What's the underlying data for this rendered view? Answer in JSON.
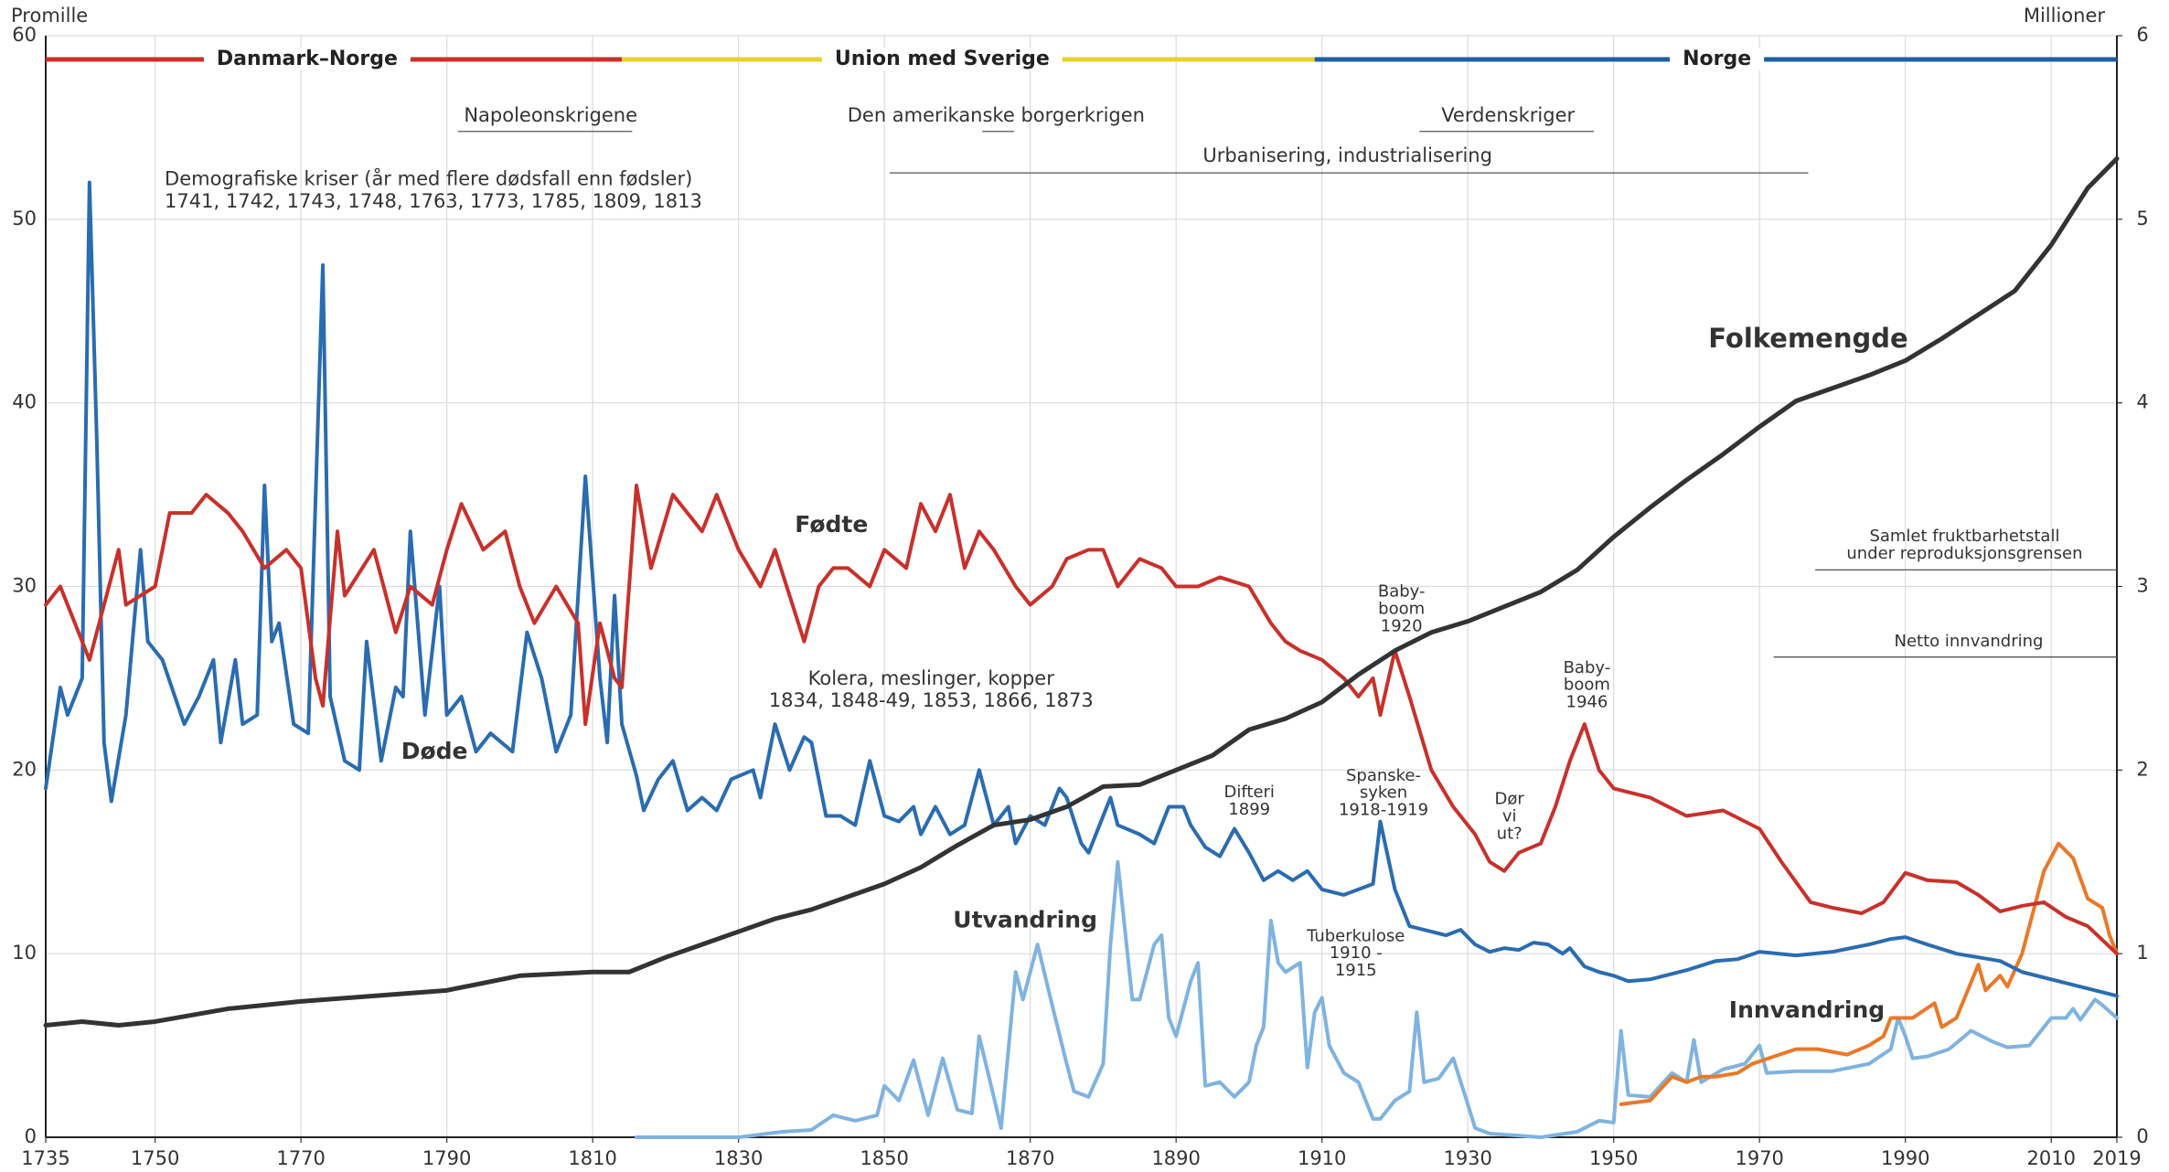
{
  "chart_data": {
    "type": "line",
    "y_label": "Promille",
    "y2_label": "Millioner",
    "xlim": [
      1735,
      2019
    ],
    "xticks": [
      1735,
      1750,
      1770,
      1790,
      1810,
      1830,
      1850,
      1870,
      1890,
      1910,
      1930,
      1950,
      1970,
      1990,
      2010,
      2019
    ],
    "ylim": [
      0,
      60
    ],
    "yticks": [
      0,
      10,
      20,
      30,
      40,
      50,
      60
    ],
    "y2lim": [
      0,
      6
    ],
    "y2ticks": [
      0,
      1,
      2,
      3,
      4,
      5,
      6
    ],
    "grid": true,
    "periods": [
      {
        "label": "Danmark–Norge",
        "color": "#c8312b",
        "start": 1735,
        "end": 1814
      },
      {
        "label": "Union med Sverige",
        "color": "#e8d22a",
        "start": 1814,
        "end": 1909
      },
      {
        "label": "Norge",
        "color": "#1f5fa0",
        "start": 1909,
        "end": 2019
      }
    ],
    "annotations": [
      {
        "lines": [
          "Napoleonskrigene"
        ]
      },
      {
        "lines": [
          "Den amerikanske borgerkrigen"
        ]
      },
      {
        "lines": [
          "Verdenskriger"
        ]
      },
      {
        "lines": [
          "Urbanisering, industrialisering"
        ]
      },
      {
        "lines": [
          "Demografiske kriser (år med flere dødsfall enn fødsler)",
          "1741, 1742, 1743, 1748, 1763, 1773, 1785, 1809, 1813"
        ]
      },
      {
        "lines": [
          "Kolera, meslinger, kopper",
          "1834, 1848-49, 1853, 1866, 1873"
        ]
      },
      {
        "lines": [
          "Baby-",
          "boom",
          "1920"
        ]
      },
      {
        "lines": [
          "Difteri",
          "1899"
        ]
      },
      {
        "lines": [
          "Spanske-",
          "syken",
          "1918-1919"
        ]
      },
      {
        "lines": [
          "Dør",
          "vi",
          "ut?"
        ]
      },
      {
        "lines": [
          "Baby-",
          "boom",
          "1946"
        ]
      },
      {
        "lines": [
          "Tuberkulose",
          "1910 -",
          "1915"
        ]
      },
      {
        "lines": [
          "Samlet fruktbarhetstall",
          "under reproduksjonsgrensen"
        ]
      },
      {
        "lines": [
          "Netto innvandring"
        ]
      }
    ],
    "series": [
      {
        "name": "Fødte",
        "color": "#c8312b",
        "x": [
          1735,
          1737,
          1740,
          1741,
          1745,
          1746,
          1750,
          1752,
          1755,
          1757,
          1760,
          1762,
          1765,
          1768,
          1770,
          1772,
          1773,
          1775,
          1776,
          1780,
          1783,
          1785,
          1788,
          1790,
          1792,
          1795,
          1798,
          1800,
          1802,
          1805,
          1808,
          1809,
          1811,
          1813,
          1814,
          1815,
          1816,
          1818,
          1821,
          1825,
          1827,
          1830,
          1833,
          1835,
          1837,
          1839,
          1841,
          1843,
          1845,
          1848,
          1850,
          1853,
          1855,
          1857,
          1859,
          1861,
          1863,
          1865,
          1868,
          1870,
          1873,
          1875,
          1878,
          1880,
          1882,
          1885,
          1888,
          1890,
          1893,
          1896,
          1900,
          1903,
          1905,
          1907,
          1910,
          1913,
          1915,
          1917,
          1918,
          1920,
          1922,
          1925,
          1928,
          1931,
          1933,
          1935,
          1937,
          1940,
          1942,
          1944,
          1946,
          1948,
          1950,
          1955,
          1960,
          1965,
          1970,
          1973,
          1977,
          1980,
          1984,
          1987,
          1990,
          1993,
          1997,
          2000,
          2003,
          2006,
          2009,
          2012,
          2015,
          2019
        ],
        "values": [
          29,
          30,
          27,
          26,
          32,
          29,
          30,
          34,
          34,
          35,
          34,
          33,
          31,
          32,
          31,
          25,
          23.5,
          33,
          29.5,
          32,
          27.5,
          30,
          29,
          32,
          34.5,
          32,
          33,
          30,
          28,
          30,
          28,
          22.5,
          28,
          25,
          24.5,
          30,
          35.5,
          31,
          35,
          33,
          35,
          32,
          30,
          32,
          29.5,
          27,
          30,
          31,
          31,
          30,
          32,
          31,
          34.5,
          33,
          35,
          31,
          33,
          32,
          30,
          29,
          30,
          31.5,
          32,
          32,
          30,
          31.5,
          31,
          30,
          30,
          30.5,
          30,
          28,
          27,
          26.5,
          26,
          25,
          24,
          25,
          23,
          26.5,
          24,
          20,
          18,
          16.5,
          15,
          14.5,
          15.5,
          16,
          18,
          20.5,
          22.5,
          20,
          19,
          18.5,
          17.5,
          17.8,
          16.8,
          15,
          12.8,
          12.5,
          12.2,
          12.8,
          14.4,
          14,
          13.9,
          13.2,
          12.3,
          12.6,
          12.8,
          12,
          11.5,
          10
        ]
      },
      {
        "name": "Døde",
        "color": "#2a6cb0",
        "x": [
          1735,
          1737,
          1738,
          1740,
          1741,
          1742,
          1743,
          1744,
          1746,
          1748,
          1749,
          1751,
          1754,
          1756,
          1758,
          1759,
          1761,
          1762,
          1764,
          1765,
          1766,
          1767,
          1769,
          1771,
          1773,
          1774,
          1776,
          1778,
          1779,
          1781,
          1783,
          1784,
          1785,
          1787,
          1789,
          1790,
          1792,
          1794,
          1796,
          1799,
          1801,
          1803,
          1805,
          1807,
          1809,
          1811,
          1812,
          1813,
          1814,
          1816,
          1817,
          1819,
          1821,
          1823,
          1825,
          1827,
          1829,
          1832,
          1833,
          1835,
          1837,
          1839,
          1840,
          1842,
          1844,
          1846,
          1848,
          1850,
          1852,
          1854,
          1855,
          1857,
          1859,
          1861,
          1863,
          1865,
          1867,
          1868,
          1870,
          1872,
          1874,
          1875,
          1877,
          1878,
          1881,
          1882,
          1885,
          1887,
          1889,
          1891,
          1892,
          1894,
          1896,
          1898,
          1900,
          1902,
          1904,
          1906,
          1908,
          1910,
          1913,
          1915,
          1917,
          1918,
          1920,
          1922,
          1925,
          1927,
          1929,
          1931,
          1933,
          1935,
          1937,
          1939,
          1941,
          1943,
          1944,
          1946,
          1948,
          1950,
          1952,
          1955,
          1960,
          1964,
          1967,
          1970,
          1975,
          1980,
          1985,
          1988,
          1990,
          1993,
          1997,
          2000,
          2003,
          2006,
          2010,
          2015,
          2019
        ],
        "values": [
          19,
          24.5,
          23,
          25,
          52,
          38,
          21.5,
          18.3,
          23,
          32,
          27,
          26,
          22.5,
          24,
          26,
          21.5,
          26,
          22.5,
          23,
          35.5,
          27,
          28,
          22.5,
          22,
          47.5,
          24,
          20.5,
          20,
          27,
          20.5,
          24.5,
          24,
          33,
          23,
          30,
          23,
          24,
          21,
          22,
          21,
          27.5,
          25,
          21,
          23,
          36,
          25,
          21.5,
          29.5,
          22.5,
          19.7,
          17.8,
          19.5,
          20.5,
          17.8,
          18.5,
          17.8,
          19.5,
          20,
          18.5,
          22.5,
          20,
          21.8,
          21.5,
          17.5,
          17.5,
          17,
          20.5,
          17.5,
          17.2,
          18,
          16.5,
          18,
          16.5,
          17,
          20,
          17,
          18,
          16,
          17.5,
          17,
          19,
          18.5,
          16,
          15.5,
          18.5,
          17,
          16.5,
          16,
          18,
          18,
          17,
          15.8,
          15.3,
          16.8,
          15.5,
          14,
          14.5,
          14,
          14.5,
          13.5,
          13.2,
          13.5,
          13.8,
          17.2,
          13.5,
          11.5,
          11.2,
          11,
          11.3,
          10.5,
          10.1,
          10.3,
          10.2,
          10.6,
          10.5,
          10,
          10.3,
          9.3,
          9,
          8.8,
          8.5,
          8.6,
          9.1,
          9.6,
          9.7,
          10.1,
          9.9,
          10.1,
          10.5,
          10.8,
          10.9,
          10.5,
          10,
          9.8,
          9.6,
          9,
          8.6,
          8.1,
          7.7
        ]
      },
      {
        "name": "Utvandring",
        "color": "#7fb3e0",
        "x": [
          1816,
          1830,
          1836,
          1840,
          1843,
          1846,
          1849,
          1850,
          1852,
          1854,
          1856,
          1858,
          1860,
          1862,
          1863,
          1865,
          1866,
          1868,
          1869,
          1871,
          1873,
          1875,
          1876,
          1878,
          1880,
          1881,
          1882,
          1884,
          1885,
          1887,
          1888,
          1889,
          1890,
          1892,
          1893,
          1894,
          1896,
          1898,
          1900,
          1901,
          1902,
          1903,
          1904,
          1905,
          1907,
          1908,
          1909,
          1910,
          1911,
          1913,
          1915,
          1916,
          1917,
          1918,
          1919,
          1920,
          1922,
          1923,
          1924,
          1926,
          1928,
          1930,
          1931,
          1933,
          1940,
          1945,
          1948,
          1950,
          1951,
          1952,
          1955,
          1958,
          1960,
          1961,
          1962,
          1965,
          1968,
          1970,
          1971,
          1975,
          1980,
          1985,
          1988,
          1989,
          1990,
          1991,
          1993,
          1996,
          1999,
          2002,
          2004,
          2007,
          2010,
          2012,
          2013,
          2014,
          2016,
          2017,
          2019
        ],
        "values": [
          0,
          0,
          0.3,
          0.4,
          1.2,
          0.9,
          1.2,
          2.8,
          2,
          4.2,
          1.2,
          4.3,
          1.5,
          1.3,
          5.5,
          2.2,
          0.5,
          9,
          7.5,
          10.5,
          7.2,
          4,
          2.5,
          2.2,
          4,
          10.5,
          15,
          7.5,
          7.5,
          10.5,
          11,
          6.5,
          5.5,
          8.5,
          9.5,
          2.8,
          3,
          2.2,
          3,
          5,
          6,
          11.8,
          9.5,
          9,
          9.5,
          3.8,
          6.8,
          7.6,
          5,
          3.5,
          3,
          2,
          1,
          1,
          1.5,
          2,
          2.5,
          6.8,
          3,
          3.2,
          4.3,
          1.8,
          0.5,
          0.2,
          0,
          0.3,
          0.9,
          0.8,
          5.8,
          2.3,
          2.2,
          3.5,
          3,
          5.3,
          3,
          3.7,
          4,
          5,
          3.5,
          3.6,
          3.6,
          4,
          4.8,
          6.5,
          5.5,
          4.3,
          4.4,
          4.8,
          5.8,
          5.2,
          4.9,
          5,
          6.5,
          6.5,
          7,
          6.4,
          7.5,
          7.2,
          6.5
        ]
      },
      {
        "name": "Innvandring",
        "color": "#e8792a",
        "x": [
          1951,
          1955,
          1958,
          1960,
          1962,
          1964,
          1967,
          1969,
          1972,
          1975,
          1978,
          1982,
          1985,
          1987,
          1988,
          1990,
          1991,
          1994,
          1995,
          1997,
          2000,
          2001,
          2003,
          2004,
          2006,
          2008,
          2009,
          2011,
          2013,
          2015,
          2017,
          2018,
          2019
        ],
        "values": [
          1.8,
          2,
          3.3,
          3,
          3.3,
          3.3,
          3.5,
          4,
          4.4,
          4.8,
          4.8,
          4.5,
          5,
          5.5,
          6.5,
          6.5,
          6.5,
          7.3,
          6,
          6.5,
          9.4,
          8,
          8.8,
          8.2,
          10,
          13,
          14.5,
          16,
          15.2,
          13,
          12.5,
          11,
          10
        ]
      },
      {
        "name": "Folkemengde",
        "color": "#333333",
        "axis": "y2",
        "x": [
          1735,
          1740,
          1745,
          1750,
          1760,
          1770,
          1780,
          1790,
          1800,
          1810,
          1815,
          1820,
          1825,
          1830,
          1835,
          1840,
          1845,
          1850,
          1855,
          1860,
          1865,
          1870,
          1875,
          1880,
          1885,
          1890,
          1895,
          1900,
          1905,
          1910,
          1915,
          1920,
          1925,
          1930,
          1935,
          1940,
          1945,
          1950,
          1955,
          1960,
          1965,
          1970,
          1975,
          1980,
          1985,
          1990,
          1995,
          2000,
          2005,
          2010,
          2015,
          2019
        ],
        "values": [
          0.61,
          0.63,
          0.61,
          0.63,
          0.7,
          0.74,
          0.77,
          0.8,
          0.88,
          0.9,
          0.9,
          0.98,
          1.05,
          1.12,
          1.19,
          1.24,
          1.31,
          1.38,
          1.47,
          1.59,
          1.7,
          1.73,
          1.8,
          1.91,
          1.92,
          2.0,
          2.08,
          2.22,
          2.28,
          2.37,
          2.52,
          2.65,
          2.75,
          2.81,
          2.89,
          2.97,
          3.09,
          3.27,
          3.43,
          3.58,
          3.72,
          3.87,
          4.01,
          4.08,
          4.15,
          4.23,
          4.35,
          4.48,
          4.61,
          4.86,
          5.17,
          5.33
        ]
      }
    ]
  }
}
